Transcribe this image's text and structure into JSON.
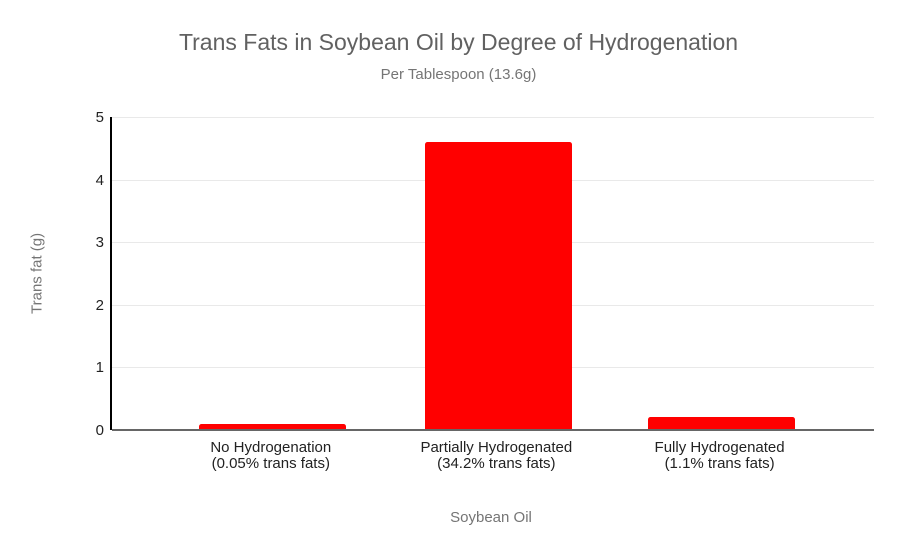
{
  "chart_data": {
    "type": "bar",
    "title": "Trans Fats in Soybean Oil by Degree of Hydrogenation",
    "subtitle": "Per Tablespoon (13.6g)",
    "categories": [
      {
        "line1": "No Hydrogenation",
        "line2": "(0.05% trans fats)"
      },
      {
        "line1": "Partially Hydrogenated",
        "line2": "(34.2% trans fats)"
      },
      {
        "line1": "Fully Hydrogenated",
        "line2": "(1.1% trans fats)"
      }
    ],
    "values": [
      0.1,
      4.6,
      0.2
    ],
    "xlabel": "Soybean Oil",
    "ylabel": "Trans fat (g)",
    "ylim": [
      0,
      5
    ],
    "yticks": [
      0,
      1,
      2,
      3,
      4,
      5
    ],
    "grid": true,
    "legend": "none",
    "bar_color": "#ff0000",
    "colors": {
      "title": "#616161",
      "subtitle": "#757575",
      "axis_title": "#757575",
      "tick_label": "#222222",
      "gridline": "#e9e9e9",
      "baseline": "#666666",
      "yaxis_line": "#000000"
    },
    "layout": {
      "bar_centers_frac": [
        0.211,
        0.507,
        0.8
      ],
      "bar_width_frac": 0.193
    }
  }
}
